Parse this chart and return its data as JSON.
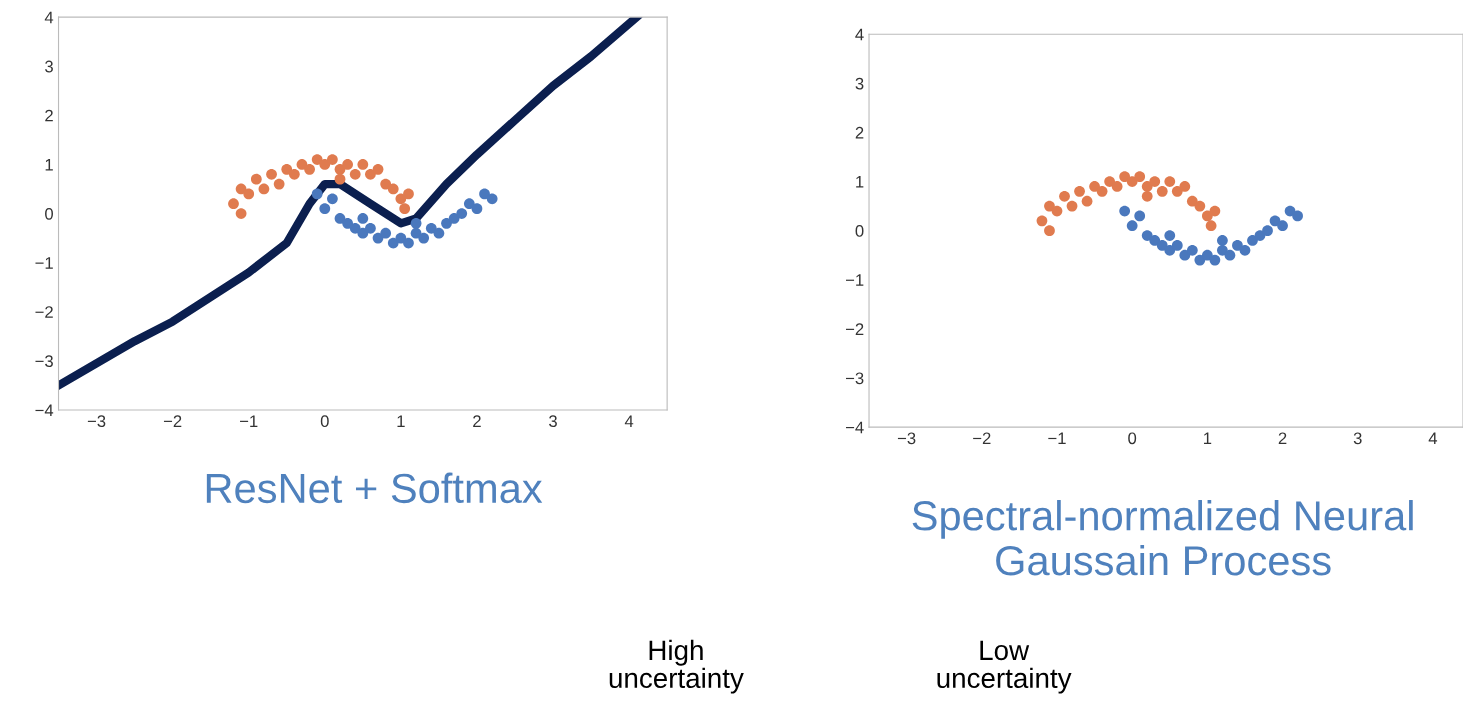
{
  "chart_data": [
    {
      "type": "scatter",
      "title": "ResNet + Softmax",
      "xlim": [
        -3.5,
        4.5
      ],
      "ylim": [
        -4,
        4
      ],
      "xticks": [
        -3,
        -2,
        -1,
        0,
        1,
        2,
        3,
        4
      ],
      "yticks": [
        -4,
        -3,
        -2,
        -1,
        0,
        1,
        2,
        3,
        4
      ],
      "grid": false,
      "marker": "circle",
      "series": [
        {
          "color": "#e07b4f",
          "x": [
            -1.2,
            -1.1,
            -1,
            -0.9,
            -0.8,
            -0.7,
            -0.6,
            -0.5,
            -0.4,
            -0.3,
            -0.2,
            -0.1,
            0,
            0.1,
            0.2,
            0.3,
            0.4,
            0.5,
            0.6,
            0.7,
            0.8,
            0.9,
            1.0,
            1.05,
            1.1,
            -1.1,
            0.2
          ],
          "values": [
            0.2,
            0.5,
            0.4,
            0.7,
            0.5,
            0.8,
            0.6,
            0.9,
            0.8,
            1.0,
            0.9,
            1.1,
            1.0,
            1.1,
            0.9,
            1.0,
            0.8,
            1.0,
            0.8,
            0.9,
            0.6,
            0.5,
            0.3,
            0.1,
            0.4,
            0.0,
            0.7
          ]
        },
        {
          "color": "#4a78bd",
          "x": [
            -0.1,
            0,
            0.1,
            0.2,
            0.3,
            0.4,
            0.5,
            0.6,
            0.7,
            0.8,
            0.9,
            1.0,
            1.1,
            1.2,
            1.3,
            1.4,
            1.5,
            1.6,
            1.7,
            1.8,
            1.9,
            2.0,
            2.1,
            2.2,
            1.2,
            0.5
          ],
          "values": [
            0.4,
            0.1,
            0.3,
            -0.1,
            -0.2,
            -0.3,
            -0.4,
            -0.3,
            -0.5,
            -0.4,
            -0.6,
            -0.5,
            -0.6,
            -0.4,
            -0.5,
            -0.3,
            -0.4,
            -0.2,
            -0.1,
            0.0,
            0.2,
            0.1,
            0.4,
            0.3,
            -0.2,
            -0.1
          ]
        },
        {
          "type": "line",
          "marker": "none",
          "color": "#0b1f4f",
          "x": [
            -3.5,
            -2.5,
            -2,
            -1.5,
            -1,
            -0.5,
            -0.2,
            0,
            0.2,
            0.6,
            1,
            1.2,
            1.6,
            2,
            2.5,
            3,
            3.5,
            4.1
          ],
          "values": [
            -3.5,
            -2.6,
            -2.2,
            -1.7,
            -1.2,
            -0.6,
            0.2,
            0.6,
            0.6,
            0.2,
            -0.2,
            -0.1,
            0.6,
            1.2,
            1.9,
            2.6,
            3.2,
            4
          ]
        }
      ],
      "annotations": [
        "High\nuncertainty",
        "Low\nuncertainty"
      ]
    },
    {
      "type": "scatter",
      "title": "Spectral-normalized Neural Gaussain Process",
      "xlim": [
        -3.5,
        4.4
      ],
      "ylim": [
        -4,
        4
      ],
      "xticks": [
        -3,
        -2,
        -1,
        0,
        1,
        2,
        3,
        4
      ],
      "yticks": [
        -4,
        -3,
        -2,
        -1,
        0,
        1,
        2,
        3,
        4
      ],
      "grid": false,
      "marker": "circle",
      "series": [
        {
          "color": "#e07b4f",
          "x": [
            -1.2,
            -1.1,
            -1,
            -0.9,
            -0.8,
            -0.7,
            -0.6,
            -0.5,
            -0.4,
            -0.3,
            -0.2,
            -0.1,
            0,
            0.1,
            0.2,
            0.3,
            0.4,
            0.5,
            0.6,
            0.7,
            0.8,
            0.9,
            1.0,
            1.05,
            1.1,
            -1.1,
            0.2
          ],
          "values": [
            0.2,
            0.5,
            0.4,
            0.7,
            0.5,
            0.8,
            0.6,
            0.9,
            0.8,
            1.0,
            0.9,
            1.1,
            1.0,
            1.1,
            0.9,
            1.0,
            0.8,
            1.0,
            0.8,
            0.9,
            0.6,
            0.5,
            0.3,
            0.1,
            0.4,
            0.0,
            0.7
          ]
        },
        {
          "color": "#4a78bd",
          "x": [
            -0.1,
            0,
            0.1,
            0.2,
            0.3,
            0.4,
            0.5,
            0.6,
            0.7,
            0.8,
            0.9,
            1.0,
            1.1,
            1.2,
            1.3,
            1.4,
            1.5,
            1.6,
            1.7,
            1.8,
            1.9,
            2.0,
            2.1,
            2.2,
            1.2,
            0.5
          ],
          "values": [
            0.4,
            0.1,
            0.3,
            -0.1,
            -0.2,
            -0.3,
            -0.4,
            -0.3,
            -0.5,
            -0.4,
            -0.6,
            -0.5,
            -0.6,
            -0.4,
            -0.5,
            -0.3,
            -0.4,
            -0.2,
            -0.1,
            0.0,
            0.2,
            0.1,
            0.4,
            0.3,
            -0.2,
            -0.1
          ]
        }
      ]
    }
  ]
}
